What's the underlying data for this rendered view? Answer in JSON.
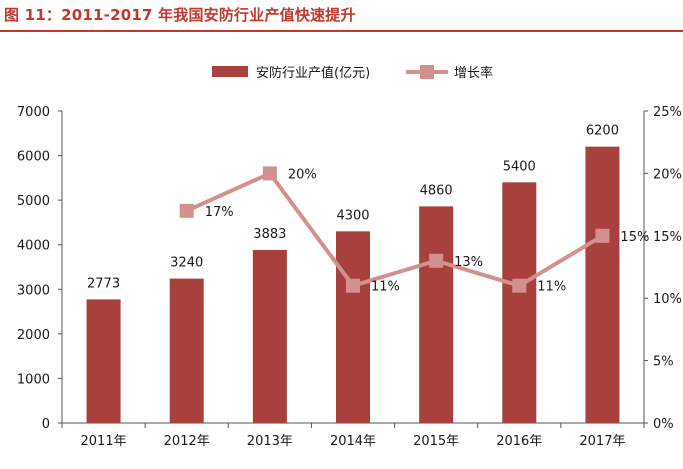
{
  "figure": {
    "title": "图 11：2011-2017 年我国安防行业产值快速提升"
  },
  "chart_data": {
    "type": "bar+line",
    "categories": [
      "2011年",
      "2012年",
      "2013年",
      "2014年",
      "2015年",
      "2016年",
      "2017年"
    ],
    "series": [
      {
        "name": "安防行业产值(亿元)",
        "type": "bar",
        "axis": "left",
        "values": [
          2773,
          3240,
          3883,
          4300,
          4860,
          5400,
          6200
        ],
        "labels": [
          "2773",
          "3240",
          "3883",
          "4300",
          "4860",
          "5400",
          "6200"
        ],
        "color": "#a8403e"
      },
      {
        "name": "增长率",
        "type": "line",
        "axis": "right",
        "values": [
          null,
          17,
          20,
          11,
          13,
          11,
          15
        ],
        "labels": [
          null,
          "17%",
          "20%",
          "11%",
          "13%",
          "11%",
          "15%"
        ],
        "color": "#d4908f"
      }
    ],
    "y_left": {
      "min": 0,
      "max": 7000,
      "ticks": [
        "0",
        "1000",
        "2000",
        "3000",
        "4000",
        "5000",
        "6000",
        "7000"
      ]
    },
    "y_right": {
      "min": 0,
      "max": 25,
      "ticks": [
        "0%",
        "5%",
        "10%",
        "15%",
        "20%",
        "25%"
      ]
    },
    "legend_position": "top-center",
    "grid": false
  }
}
